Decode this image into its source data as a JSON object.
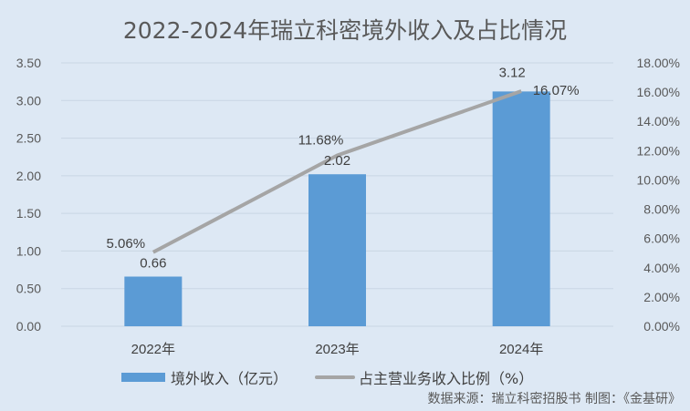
{
  "chart_data": {
    "type": "bar+line",
    "title": "2022-2024年瑞立科密境外收入及占比情况",
    "categories": [
      "2022年",
      "2023年",
      "2024年"
    ],
    "series": [
      {
        "name": "境外收入（亿元）",
        "type": "bar",
        "axis": "left",
        "color": "#5b9bd5",
        "values": [
          0.66,
          2.02,
          3.12
        ],
        "labels": [
          "0.66",
          "2.02",
          "3.12"
        ]
      },
      {
        "name": "占主营业务收入比例（%）",
        "type": "line",
        "axis": "right",
        "color": "#a5a5a5",
        "values": [
          5.06,
          11.68,
          16.07
        ],
        "labels": [
          "5.06%",
          "11.68%",
          "16.07%"
        ]
      }
    ],
    "left_axis": {
      "ylim": [
        0,
        3.5
      ],
      "ticks": [
        "0.00",
        "0.50",
        "1.00",
        "1.50",
        "2.00",
        "2.50",
        "3.00",
        "3.50"
      ]
    },
    "right_axis": {
      "ylim": [
        0,
        18
      ],
      "ticks": [
        "0.00%",
        "2.00%",
        "4.00%",
        "6.00%",
        "8.00%",
        "10.00%",
        "12.00%",
        "14.00%",
        "16.00%",
        "18.00%"
      ]
    },
    "grid": true,
    "legend_position": "bottom"
  },
  "title": "2022-2024年瑞立科密境外收入及占比情况",
  "legend": {
    "bar": "境外收入（亿元）",
    "line": "占主营业务收入比例（%）"
  },
  "source": "数据来源：瑞立科密招股书   制图：《金基研》"
}
